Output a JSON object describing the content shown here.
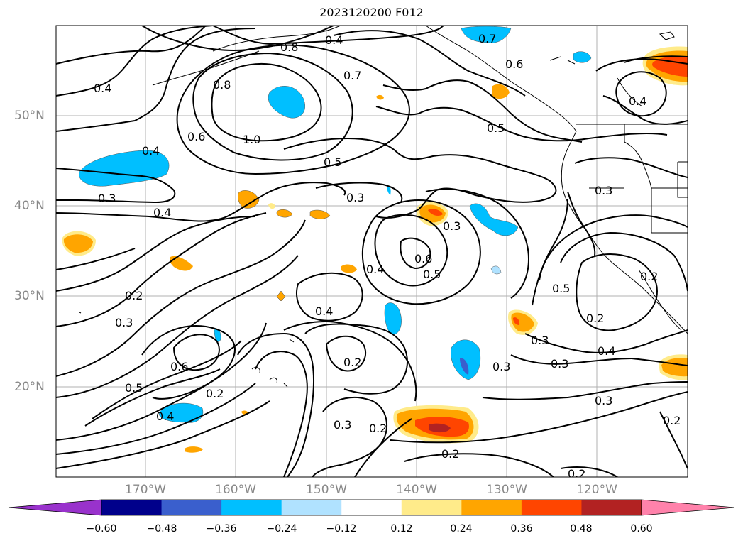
{
  "title": "2023120200 F012",
  "lat_labels": [
    "50°N",
    "40°N",
    "30°N",
    "20°N"
  ],
  "lon_labels": [
    "170°W",
    "160°W",
    "150°W",
    "140°W",
    "130°W",
    "120°W"
  ],
  "colorbar": {
    "ticks": [
      "−0.60",
      "−0.48",
      "−0.36",
      "−0.24",
      "−0.12",
      "0.12",
      "0.24",
      "0.36",
      "0.48",
      "0.60"
    ],
    "colors": [
      "#9932cc",
      "#00008b",
      "#3a5fcd",
      "#00bfff",
      "#b0e2ff",
      "#ffffff",
      "#ffeb8a",
      "#ffa500",
      "#ff4500",
      "#b22222",
      "#ff82ab"
    ]
  },
  "contour_labels": [
    "0.4",
    "0.8",
    "0.7",
    "0.4",
    "0.6",
    "0.7",
    "0.8",
    "0.6",
    "1.0",
    "0.4",
    "0.5",
    "0.5",
    "0.4",
    "0.3",
    "0.4",
    "0.3",
    "0.3",
    "0.3",
    "0.6",
    "0.5",
    "0.4",
    "0.4",
    "0.2",
    "0.3",
    "0.6",
    "0.5",
    "0.2",
    "0.4",
    "0.5",
    "0.2",
    "0.4",
    "0.2",
    "0.3",
    "0.3",
    "0.2",
    "0.3",
    "0.2",
    "0.3",
    "0.2",
    "0.2",
    "0.2",
    "0.3"
  ]
}
